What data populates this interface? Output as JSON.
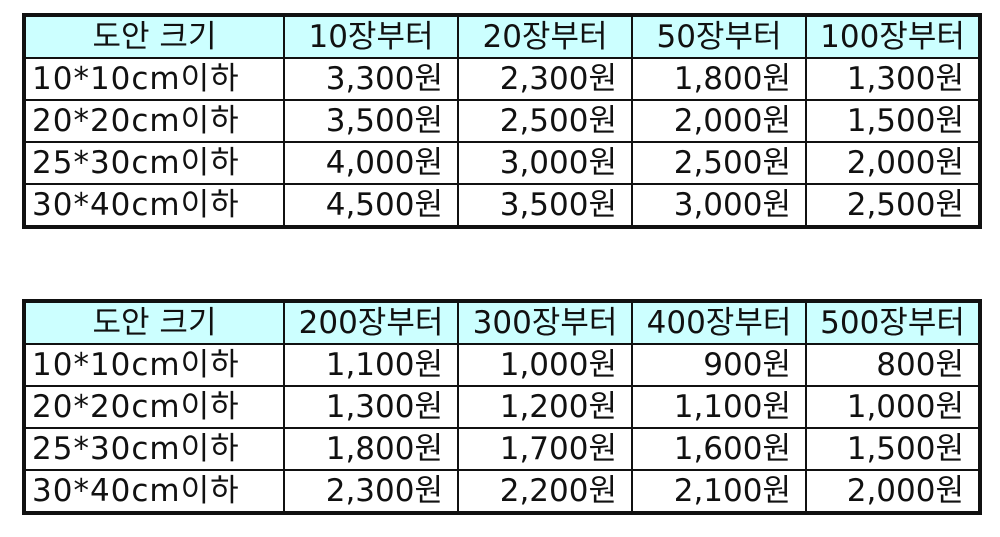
{
  "tables": [
    {
      "header": [
        "도안 크기",
        "10장부터",
        "20장부터",
        "50장부터",
        "100장부터"
      ],
      "rows": [
        [
          "10*10cm이하",
          "3,300원",
          "2,300원",
          "1,800원",
          "1,300원"
        ],
        [
          "20*20cm이하",
          "3,500원",
          "2,500원",
          "2,000원",
          "1,500원"
        ],
        [
          "25*30cm이하",
          "4,000원",
          "3,000원",
          "2,500원",
          "2,000원"
        ],
        [
          "30*40cm이하",
          "4,500원",
          "3,500원",
          "3,000원",
          "2,500원"
        ]
      ]
    },
    {
      "header": [
        "도안 크기",
        "200장부터",
        "300장부터",
        "400장부터",
        "500장부터"
      ],
      "rows": [
        [
          "10*10cm이하",
          "1,100원",
          "1,000원",
          "900원",
          "800원"
        ],
        [
          "20*20cm이하",
          "1,300원",
          "1,200원",
          "1,100원",
          "1,000원"
        ],
        [
          "25*30cm이하",
          "1,800원",
          "1,700원",
          "1,600원",
          "1,500원"
        ],
        [
          "30*40cm이하",
          "2,300원",
          "2,200원",
          "2,100원",
          "2,000원"
        ]
      ]
    }
  ],
  "colors": {
    "header_bg": "#ccffff",
    "border": "#111111",
    "text": "#111111"
  }
}
